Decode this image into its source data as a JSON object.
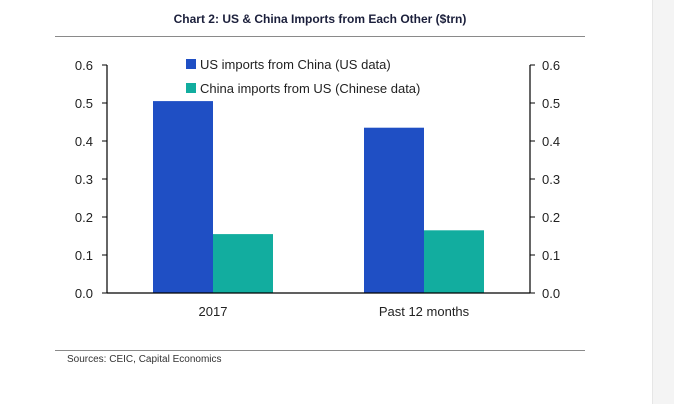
{
  "chart_data": {
    "type": "bar",
    "title": "Chart 2: US & China Imports from Each Other ($trn)",
    "categories": [
      "2017",
      "Past 12 months"
    ],
    "series": [
      {
        "name": "US imports from China (US data)",
        "values": [
          0.505,
          0.435
        ],
        "color": "#1f4fc4"
      },
      {
        "name": "China imports from US (Chinese data)",
        "values": [
          0.155,
          0.165
        ],
        "color": "#12ad9f"
      }
    ],
    "ylim": [
      0,
      0.6
    ],
    "y_ticks": [
      "0.0",
      "0.1",
      "0.2",
      "0.3",
      "0.4",
      "0.5",
      "0.6"
    ],
    "right_axis": true,
    "grid": false,
    "legend_position": "top-center"
  },
  "source": "Sources: CEIC, Capital Economics"
}
